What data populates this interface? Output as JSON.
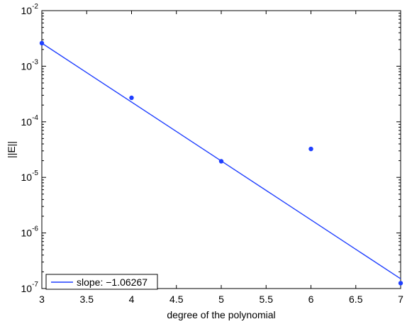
{
  "chart_data": {
    "type": "scatter",
    "title": "",
    "xlabel": "degree of the polynomial",
    "ylabel": "||E||",
    "xlim": [
      3,
      7
    ],
    "ylim_log10": [
      -7,
      -2
    ],
    "yscale": "log",
    "grid": false,
    "x_ticks": [
      "3",
      "3.5",
      "4",
      "4.5",
      "5",
      "5.5",
      "6",
      "6.5",
      "7"
    ],
    "y_ticks": [
      {
        "base": "10",
        "exp": "-7"
      },
      {
        "base": "10",
        "exp": "-6"
      },
      {
        "base": "10",
        "exp": "-5"
      },
      {
        "base": "10",
        "exp": "-4"
      },
      {
        "base": "10",
        "exp": "-3"
      },
      {
        "base": "10",
        "exp": "-2"
      }
    ],
    "series": [
      {
        "kind": "points",
        "color": "#1f3fff",
        "points": [
          {
            "x": 3,
            "y": 0.0026
          },
          {
            "x": 4,
            "y": 0.00027
          },
          {
            "x": 5,
            "y": 1.95e-05
          },
          {
            "x": 6,
            "y": 3.25e-05
          },
          {
            "x": 7,
            "y": 1.25e-07
          }
        ]
      },
      {
        "kind": "line",
        "name": "slope: −1.06267",
        "color": "#1f3fff",
        "points": [
          {
            "x": 3,
            "y": 0.0026
          },
          {
            "x": 7,
            "y": 1.5e-07
          }
        ]
      }
    ],
    "legend": {
      "position": "bottom-left",
      "label": "slope: −1.06267"
    }
  }
}
